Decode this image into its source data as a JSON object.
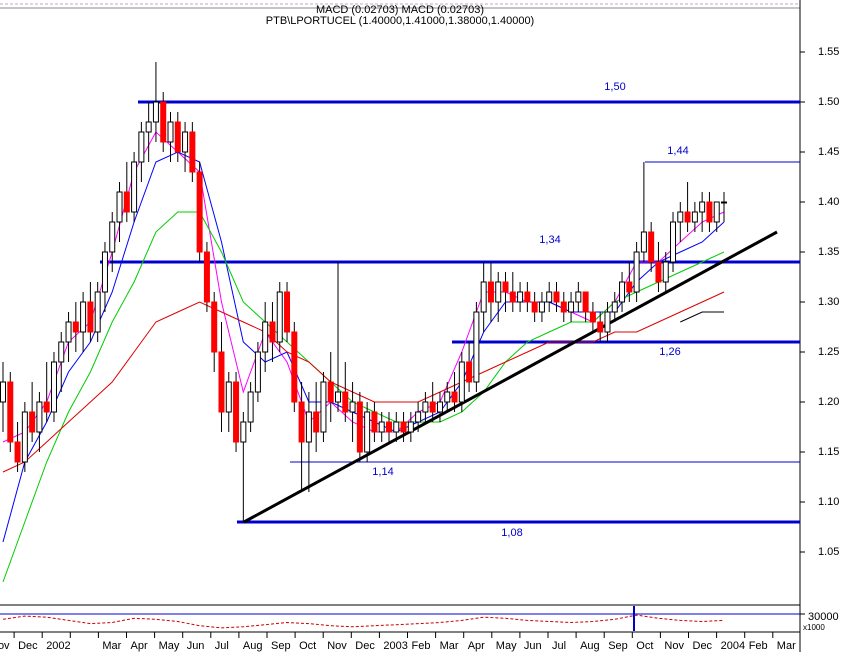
{
  "chart_data": {
    "type": "candlestick",
    "indicator_label": "MACD (0.02703) MACD (0.02703)",
    "title": "PTB\\LPORTUCEL (1.40000,1.41000,1.38000,1.40000)",
    "categories": [
      "Nov",
      "Dec",
      "2002",
      null,
      "Mar",
      "Apr",
      "May",
      "Jun",
      "Jul",
      "Aug",
      "Sep",
      "Oct",
      "Nov",
      "Dec",
      "2003",
      "Feb",
      "Mar",
      "Apr",
      "May",
      "Jun",
      "Jul",
      "Aug",
      "Sep",
      "Oct",
      "Nov",
      "Dec",
      "2004",
      "Feb",
      "Mar"
    ],
    "up_color": "#ffffff",
    "down_color": "#ff0000",
    "candles": [
      [
        1.2,
        1.24,
        1.17,
        1.22
      ],
      [
        1.22,
        1.23,
        1.15,
        1.16
      ],
      [
        1.16,
        1.18,
        1.13,
        1.14
      ],
      [
        1.14,
        1.2,
        1.13,
        1.19
      ],
      [
        1.19,
        1.22,
        1.16,
        1.17
      ],
      [
        1.17,
        1.21,
        1.15,
        1.2
      ],
      [
        1.2,
        1.24,
        1.18,
        1.19
      ],
      [
        1.19,
        1.25,
        1.18,
        1.24
      ],
      [
        1.24,
        1.27,
        1.21,
        1.26
      ],
      [
        1.26,
        1.29,
        1.24,
        1.28
      ],
      [
        1.28,
        1.3,
        1.25,
        1.27
      ],
      [
        1.27,
        1.31,
        1.25,
        1.3
      ],
      [
        1.3,
        1.32,
        1.26,
        1.27
      ],
      [
        1.27,
        1.32,
        1.26,
        1.31
      ],
      [
        1.31,
        1.36,
        1.29,
        1.35
      ],
      [
        1.35,
        1.39,
        1.33,
        1.38
      ],
      [
        1.38,
        1.42,
        1.36,
        1.41
      ],
      [
        1.41,
        1.44,
        1.38,
        1.39
      ],
      [
        1.39,
        1.45,
        1.38,
        1.44
      ],
      [
        1.44,
        1.48,
        1.42,
        1.47
      ],
      [
        1.47,
        1.5,
        1.44,
        1.48
      ],
      [
        1.48,
        1.54,
        1.46,
        1.5
      ],
      [
        1.5,
        1.51,
        1.45,
        1.46
      ],
      [
        1.46,
        1.49,
        1.44,
        1.48
      ],
      [
        1.48,
        1.49,
        1.44,
        1.45
      ],
      [
        1.45,
        1.48,
        1.43,
        1.47
      ],
      [
        1.47,
        1.48,
        1.42,
        1.43
      ],
      [
        1.43,
        1.44,
        1.34,
        1.35
      ],
      [
        1.35,
        1.36,
        1.29,
        1.3
      ],
      [
        1.3,
        1.31,
        1.23,
        1.25
      ],
      [
        1.25,
        1.28,
        1.17,
        1.19
      ],
      [
        1.19,
        1.23,
        1.17,
        1.22
      ],
      [
        1.22,
        1.23,
        1.15,
        1.16
      ],
      [
        1.16,
        1.19,
        1.08,
        1.18
      ],
      [
        1.18,
        1.22,
        1.17,
        1.21
      ],
      [
        1.21,
        1.26,
        1.2,
        1.25
      ],
      [
        1.25,
        1.3,
        1.23,
        1.28
      ],
      [
        1.28,
        1.3,
        1.24,
        1.26
      ],
      [
        1.26,
        1.32,
        1.25,
        1.31
      ],
      [
        1.31,
        1.32,
        1.26,
        1.27
      ],
      [
        1.27,
        1.28,
        1.19,
        1.2
      ],
      [
        1.2,
        1.22,
        1.11,
        1.16
      ],
      [
        1.16,
        1.21,
        1.11,
        1.19
      ],
      [
        1.19,
        1.22,
        1.15,
        1.17
      ],
      [
        1.17,
        1.23,
        1.16,
        1.22
      ],
      [
        1.22,
        1.25,
        1.18,
        1.2
      ],
      [
        1.2,
        1.34,
        1.19,
        1.21
      ],
      [
        1.21,
        1.24,
        1.18,
        1.19
      ],
      [
        1.19,
        1.22,
        1.16,
        1.2
      ],
      [
        1.2,
        1.21,
        1.14,
        1.15
      ],
      [
        1.15,
        1.2,
        1.14,
        1.19
      ],
      [
        1.19,
        1.2,
        1.16,
        1.17
      ],
      [
        1.17,
        1.19,
        1.16,
        1.18
      ],
      [
        1.18,
        1.19,
        1.16,
        1.17
      ],
      [
        1.17,
        1.19,
        1.16,
        1.18
      ],
      [
        1.18,
        1.19,
        1.16,
        1.17
      ],
      [
        1.17,
        1.19,
        1.16,
        1.18
      ],
      [
        1.18,
        1.2,
        1.17,
        1.19
      ],
      [
        1.19,
        1.21,
        1.18,
        1.2
      ],
      [
        1.2,
        1.22,
        1.18,
        1.19
      ],
      [
        1.19,
        1.21,
        1.18,
        1.2
      ],
      [
        1.2,
        1.22,
        1.19,
        1.21
      ],
      [
        1.21,
        1.23,
        1.19,
        1.2
      ],
      [
        1.2,
        1.25,
        1.19,
        1.24
      ],
      [
        1.24,
        1.26,
        1.21,
        1.22
      ],
      [
        1.22,
        1.3,
        1.21,
        1.29
      ],
      [
        1.29,
        1.34,
        1.27,
        1.32
      ],
      [
        1.32,
        1.34,
        1.28,
        1.3
      ],
      [
        1.3,
        1.33,
        1.28,
        1.32
      ],
      [
        1.32,
        1.33,
        1.29,
        1.31
      ],
      [
        1.31,
        1.33,
        1.29,
        1.3
      ],
      [
        1.3,
        1.32,
        1.29,
        1.31
      ],
      [
        1.31,
        1.32,
        1.29,
        1.3
      ],
      [
        1.3,
        1.31,
        1.28,
        1.29
      ],
      [
        1.29,
        1.31,
        1.28,
        1.3
      ],
      [
        1.3,
        1.32,
        1.29,
        1.31
      ],
      [
        1.31,
        1.32,
        1.29,
        1.3
      ],
      [
        1.3,
        1.31,
        1.28,
        1.29
      ],
      [
        1.29,
        1.31,
        1.28,
        1.3
      ],
      [
        1.3,
        1.32,
        1.29,
        1.31
      ],
      [
        1.31,
        1.31,
        1.28,
        1.29
      ],
      [
        1.29,
        1.3,
        1.27,
        1.28
      ],
      [
        1.28,
        1.29,
        1.26,
        1.27
      ],
      [
        1.27,
        1.3,
        1.26,
        1.29
      ],
      [
        1.29,
        1.31,
        1.28,
        1.3
      ],
      [
        1.3,
        1.33,
        1.29,
        1.32
      ],
      [
        1.32,
        1.34,
        1.3,
        1.31
      ],
      [
        1.31,
        1.36,
        1.3,
        1.35
      ],
      [
        1.35,
        1.44,
        1.34,
        1.37
      ],
      [
        1.37,
        1.38,
        1.33,
        1.34
      ],
      [
        1.34,
        1.36,
        1.31,
        1.32
      ],
      [
        1.32,
        1.35,
        1.31,
        1.34
      ],
      [
        1.34,
        1.39,
        1.33,
        1.38
      ],
      [
        1.38,
        1.4,
        1.36,
        1.39
      ],
      [
        1.39,
        1.42,
        1.37,
        1.38
      ],
      [
        1.38,
        1.4,
        1.37,
        1.39
      ],
      [
        1.39,
        1.41,
        1.37,
        1.4
      ],
      [
        1.4,
        1.41,
        1.37,
        1.38
      ],
      [
        1.38,
        1.4,
        1.37,
        1.4
      ],
      [
        1.4,
        1.41,
        1.38,
        1.4
      ]
    ],
    "moving_averages": [
      {
        "color": "#ff00ff",
        "values": [
          1.16,
          1.17,
          1.2,
          1.26,
          1.28,
          1.35,
          1.43,
          1.47,
          1.45,
          1.43,
          1.3,
          1.21,
          1.27,
          1.24,
          1.18,
          1.2,
          1.18,
          1.17,
          1.17,
          1.19,
          1.2,
          1.25,
          1.31,
          1.31,
          1.3,
          1.3,
          1.29,
          1.28,
          1.3,
          1.34,
          1.34,
          1.36,
          1.38,
          1.39
        ]
      },
      {
        "color": "#0000ff",
        "values": [
          1.06,
          1.14,
          1.18,
          1.23,
          1.26,
          1.31,
          1.38,
          1.44,
          1.45,
          1.44,
          1.36,
          1.26,
          1.24,
          1.25,
          1.2,
          1.2,
          1.19,
          1.18,
          1.17,
          1.18,
          1.19,
          1.22,
          1.27,
          1.3,
          1.3,
          1.3,
          1.29,
          1.29,
          1.29,
          1.32,
          1.34,
          1.35,
          1.36,
          1.38
        ]
      },
      {
        "color": "#00cc00",
        "values": [
          1.02,
          1.08,
          1.14,
          1.19,
          1.23,
          1.28,
          1.32,
          1.37,
          1.39,
          1.39,
          1.35,
          1.3,
          1.28,
          1.26,
          1.24,
          1.22,
          1.2,
          1.19,
          1.18,
          1.18,
          1.18,
          1.19,
          1.21,
          1.24,
          1.26,
          1.27,
          1.28,
          1.28,
          1.3,
          1.31,
          1.32,
          1.33,
          1.34,
          1.35
        ]
      },
      {
        "color": "#dd0000",
        "values": [
          1.13,
          1.14,
          1.16,
          1.18,
          1.2,
          1.22,
          1.25,
          1.28,
          1.29,
          1.3,
          1.29,
          1.28,
          1.27,
          1.25,
          1.24,
          1.22,
          1.21,
          1.2,
          1.2,
          1.2,
          1.21,
          1.22,
          1.23,
          1.24,
          1.25,
          1.26,
          1.26,
          1.26,
          1.27,
          1.27,
          1.28,
          1.29,
          1.3,
          1.31
        ]
      },
      {
        "color": "#000000",
        "values": [
          null,
          null,
          null,
          null,
          null,
          null,
          null,
          null,
          null,
          null,
          null,
          null,
          null,
          null,
          null,
          null,
          null,
          null,
          null,
          null,
          null,
          null,
          null,
          null,
          null,
          null,
          null,
          null,
          null,
          null,
          null,
          1.28,
          1.29,
          1.29
        ]
      }
    ],
    "levels": [
      {
        "value": 1.5,
        "label": "1,50",
        "style": "thick"
      },
      {
        "value": 1.44,
        "label": "1,44",
        "style": "thin"
      },
      {
        "value": 1.34,
        "label": "1,34",
        "style": "thick"
      },
      {
        "value": 1.26,
        "label": "1,26",
        "style": "thick"
      },
      {
        "value": 1.14,
        "label": "1,14",
        "style": "thin"
      },
      {
        "value": 1.08,
        "label": "1,08",
        "style": "thick"
      }
    ],
    "level_color": "#0000cc",
    "trend_line": {
      "values": [
        1.08,
        1.37
      ],
      "color": "#000000"
    },
    "ylim": [
      0.997,
      1.592
    ],
    "yticks": [
      1.05,
      {
        "value": 1.1,
        "label": "1.10"
      },
      1.15,
      {
        "value": 1.2,
        "label": "1.20"
      },
      1.25,
      {
        "value": 1.3,
        "label": "1.30"
      },
      1.35,
      {
        "value": 1.4,
        "label": "1.40"
      },
      1.45,
      {
        "value": 1.5,
        "label": "1.50"
      },
      1.55
    ],
    "macd": {
      "color": "#cc0000",
      "values": [
        20000,
        26000,
        24000,
        18000,
        12000,
        14000,
        22000,
        20000,
        16000,
        8000,
        4000,
        6000,
        10000,
        14000,
        12000,
        8000,
        6000,
        8000,
        10000,
        12000,
        14000,
        18000,
        24000,
        22000,
        18000,
        16000,
        14000,
        16000,
        20000,
        28000,
        22000,
        18000,
        16000,
        18000
      ],
      "ylim": [
        0,
        30000
      ],
      "yticks": [
        30000
      ],
      "unit": "x1000"
    }
  }
}
